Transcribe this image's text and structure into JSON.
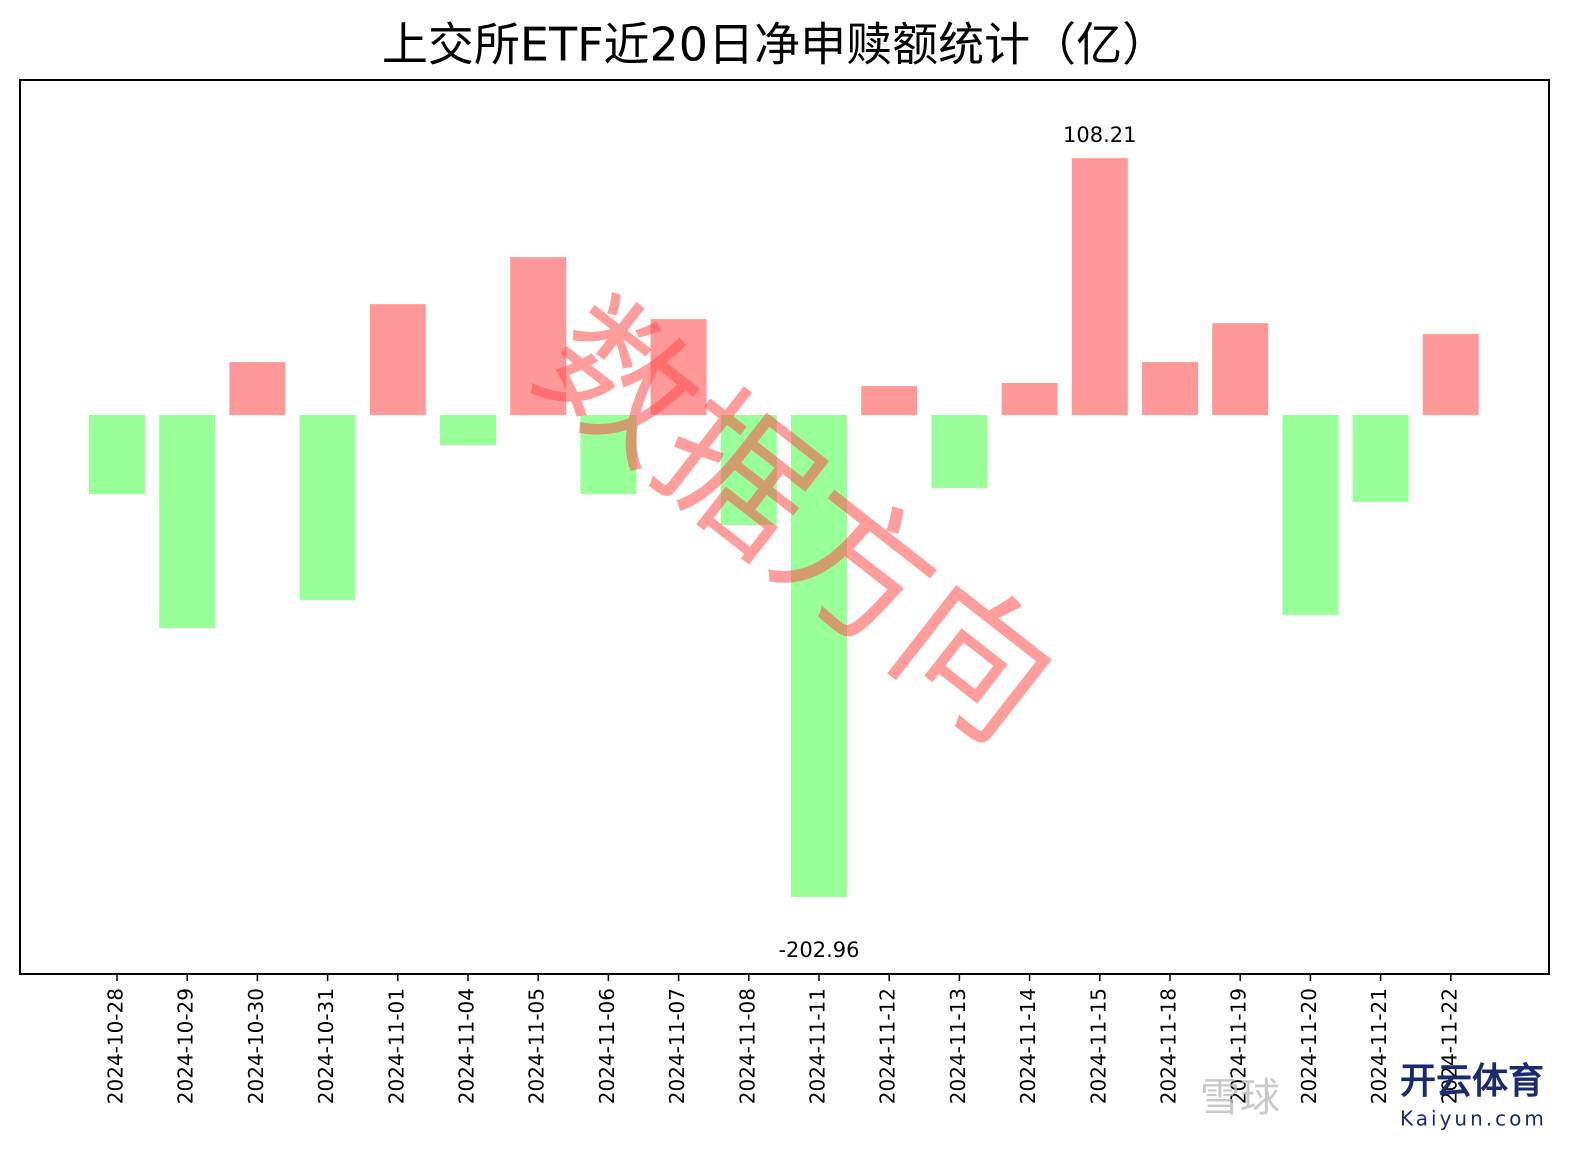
{
  "chart_data": {
    "type": "bar",
    "title": "上交所ETF近20日净申赎额统计（亿）",
    "categories": [
      "2024-10-28",
      "2024-10-29",
      "2024-10-30",
      "2024-10-31",
      "2024-11-01",
      "2024-11-04",
      "2024-11-05",
      "2024-11-06",
      "2024-11-07",
      "2024-11-08",
      "2024-11-11",
      "2024-11-12",
      "2024-11-13",
      "2024-11-14",
      "2024-11-15",
      "2024-11-18",
      "2024-11-19",
      "2024-11-20",
      "2024-11-21",
      "2024-11-22"
    ],
    "values": [
      -33.3,
      -89.7,
      22.3,
      -77.9,
      46.7,
      -12.6,
      66.5,
      -33.3,
      40.4,
      -46.3,
      -202.96,
      12.2,
      -30.7,
      13.5,
      108.21,
      22.3,
      38.7,
      -84.2,
      -36.6,
      34.1
    ],
    "value_labels": [
      null,
      null,
      null,
      null,
      null,
      null,
      null,
      null,
      null,
      null,
      "-202.96",
      null,
      null,
      null,
      "108.21",
      null,
      null,
      null,
      null,
      null
    ],
    "positive_color": "#ff9999",
    "negative_color": "#99ff99",
    "ylim": [
      -235.4,
      141.1
    ],
    "watermarks": [
      "数据方向",
      "雪球",
      "开云体育",
      "Kaiyun.com"
    ]
  }
}
